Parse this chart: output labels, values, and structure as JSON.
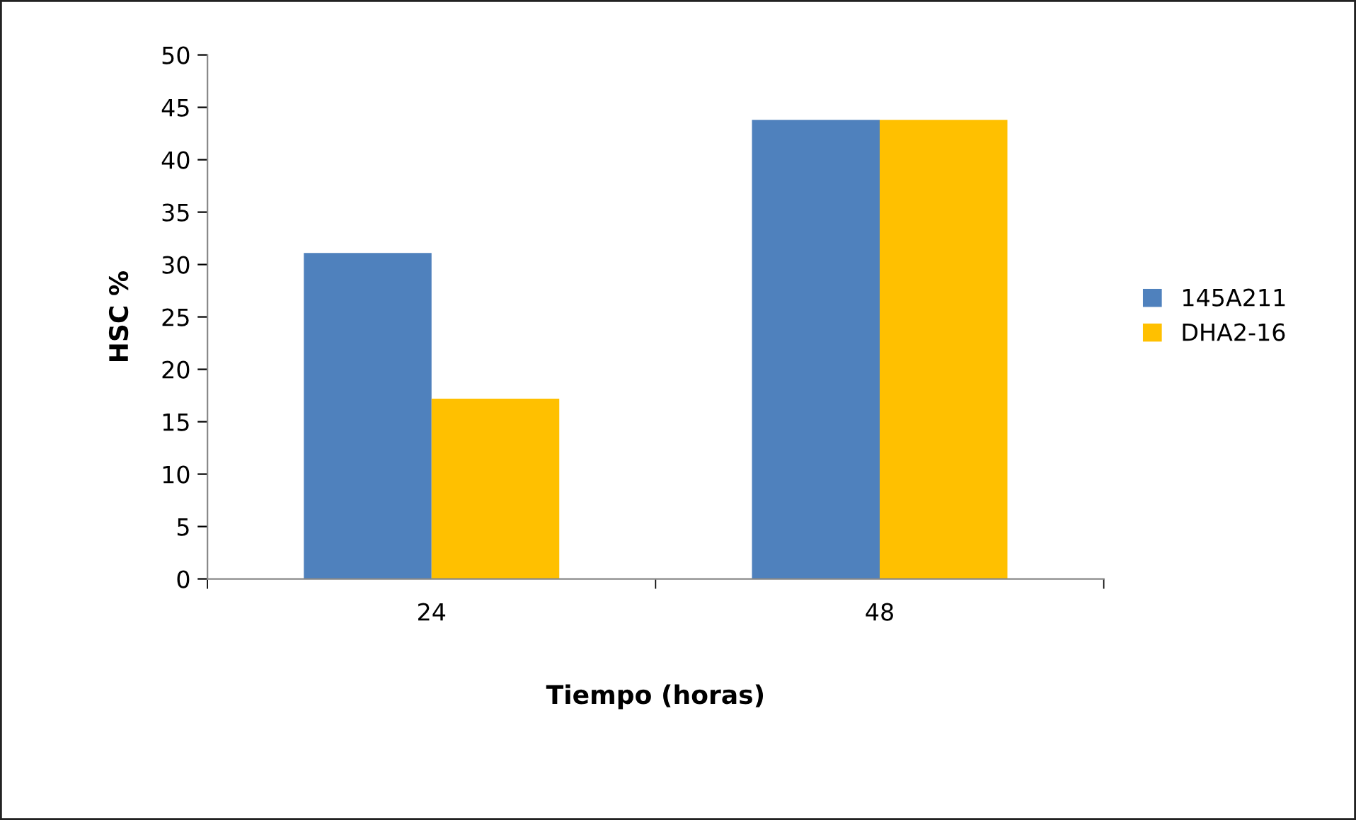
{
  "chart_data": {
    "type": "bar",
    "xlabel": "Tiempo (horas)",
    "ylabel": "HSC %",
    "categories": [
      "24",
      "48"
    ],
    "series": [
      {
        "name": "145A211",
        "color": "#4f81bd",
        "values": [
          31.1,
          43.8
        ]
      },
      {
        "name": "DHA2-16",
        "color": "#ffc000",
        "values": [
          17.2,
          43.8
        ]
      }
    ],
    "ylim": [
      0,
      50
    ],
    "yticks": [
      0,
      5,
      10,
      15,
      20,
      25,
      30,
      35,
      40,
      45,
      50
    ],
    "grid": false,
    "legend": "right"
  }
}
